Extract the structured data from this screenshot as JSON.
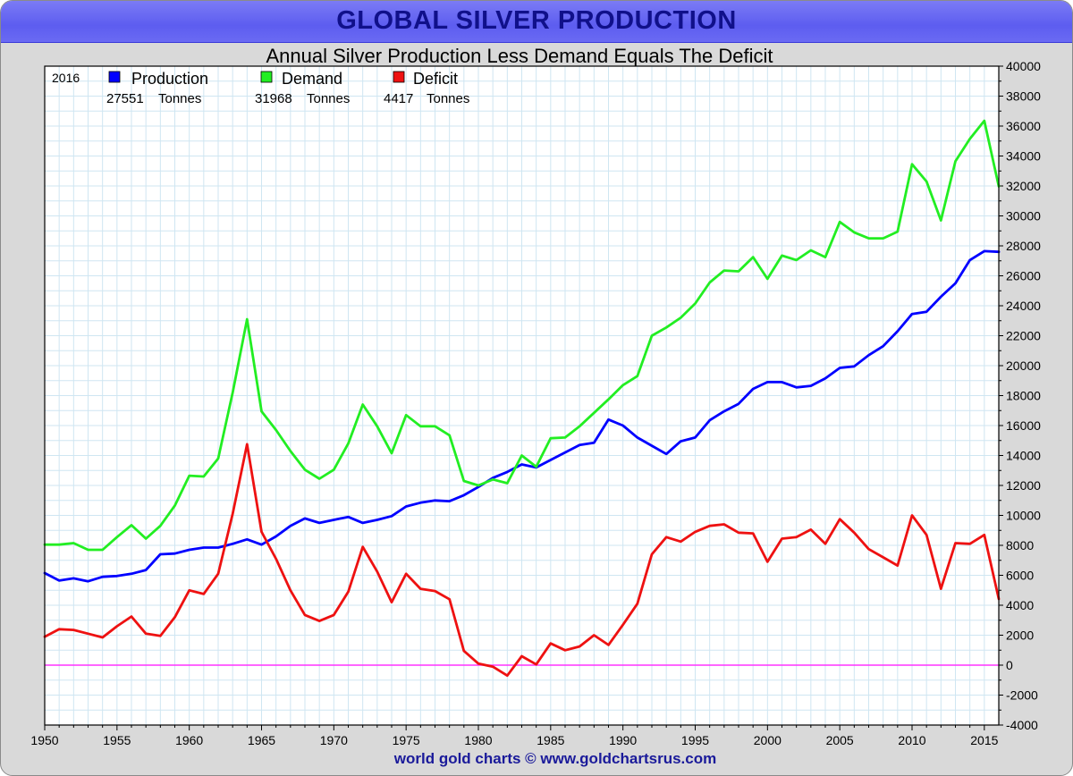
{
  "header": {
    "title": "GLOBAL SILVER PRODUCTION",
    "subtitle": "Annual Silver Production Less Demand Equals The Deficit"
  },
  "footer": {
    "credit": "world gold charts © www.goldchartsrus.com"
  },
  "legend": {
    "year": "2016",
    "items": [
      {
        "label": "Production",
        "value": "27551",
        "unit": "Tonnes",
        "color": "#0000ff"
      },
      {
        "label": "Demand",
        "value": "31968",
        "unit": "Tonnes",
        "color": "#22ee22"
      },
      {
        "label": "Deficit",
        "value": "4417",
        "unit": "Tonnes",
        "color": "#ee1111"
      }
    ]
  },
  "chart_data": {
    "type": "line",
    "title": "GLOBAL SILVER PRODUCTION",
    "subtitle": "Annual Silver Production Less Demand Equals The Deficit",
    "xlim": [
      1950,
      2016
    ],
    "ylim": [
      -4000,
      40000
    ],
    "x_ticks": [
      "1950",
      "1955",
      "1960",
      "1965",
      "1970",
      "1975",
      "1980",
      "1985",
      "1990",
      "1995",
      "2000",
      "2005",
      "2010",
      "2015"
    ],
    "y_ticks": [
      "40000",
      "38000",
      "36000",
      "34000",
      "32000",
      "30000",
      "28000",
      "26000",
      "24000",
      "22000",
      "20000",
      "18000",
      "16000",
      "14000",
      "12000",
      "10000",
      "8000",
      "6000",
      "4000",
      "2000",
      "0",
      "-2000",
      "-4000"
    ],
    "grid": true,
    "legend_position": "top-left",
    "x": [
      1950,
      1951,
      1952,
      1953,
      1954,
      1955,
      1956,
      1957,
      1958,
      1959,
      1960,
      1961,
      1962,
      1963,
      1964,
      1965,
      1966,
      1967,
      1968,
      1969,
      1970,
      1971,
      1972,
      1973,
      1974,
      1975,
      1976,
      1977,
      1978,
      1979,
      1980,
      1981,
      1982,
      1983,
      1984,
      1985,
      1986,
      1987,
      1988,
      1989,
      1990,
      1991,
      1992,
      1993,
      1994,
      1995,
      1996,
      1997,
      1998,
      1999,
      2000,
      2001,
      2002,
      2003,
      2004,
      2005,
      2006,
      2007,
      2008,
      2009,
      2010,
      2011,
      2012,
      2013,
      2014,
      2015,
      2016
    ],
    "series": [
      {
        "name": "Production",
        "color": "#0000ff",
        "values": [
          6150,
          5650,
          5800,
          5600,
          5900,
          5950,
          6100,
          6350,
          7400,
          7450,
          7700,
          7850,
          7850,
          8100,
          8400,
          8050,
          8600,
          9300,
          9800,
          9500,
          9700,
          9900,
          9500,
          9700,
          9950,
          10600,
          10850,
          11000,
          10950,
          11350,
          11900,
          12500,
          12900,
          13400,
          13200,
          13700,
          14200,
          14700,
          14850,
          16400,
          16000,
          15200,
          14650,
          14100,
          14950,
          15200,
          16350,
          16950,
          17450,
          18450,
          18900,
          18900,
          18550,
          18650,
          19150,
          19850,
          19950,
          20700,
          21300,
          22300,
          23450,
          23600,
          24600,
          25500,
          27050,
          27650,
          27600
        ]
      },
      {
        "name": "Demand",
        "color": "#22ee22",
        "values": [
          8050,
          8050,
          8150,
          7700,
          7700,
          8550,
          9350,
          8450,
          9300,
          10650,
          12650,
          12600,
          13800,
          18200,
          23100,
          16950,
          15700,
          14300,
          13050,
          12450,
          13050,
          14800,
          17400,
          15950,
          14150,
          16700,
          15950,
          15950,
          15350,
          12300,
          12000,
          12400,
          12150,
          14000,
          13250,
          15150,
          15200,
          15950,
          16850,
          17750,
          18700,
          19300,
          22000,
          22550,
          23200,
          24150,
          25550,
          26350,
          26300,
          27250,
          25800,
          27350,
          27050,
          27700,
          27250,
          29600,
          28900,
          28500,
          28500,
          28950,
          33450,
          32300,
          29700,
          33650,
          35150,
          36350,
          31968
        ]
      },
      {
        "name": "Deficit",
        "color": "#ee1111",
        "values": [
          1900,
          2400,
          2350,
          2100,
          1850,
          2600,
          3250,
          2100,
          1950,
          3200,
          5000,
          4750,
          6100,
          10100,
          14750,
          8900,
          7100,
          5000,
          3350,
          2950,
          3350,
          4900,
          7900,
          6250,
          4200,
          6100,
          5100,
          4950,
          4400,
          950,
          100,
          -100,
          -700,
          600,
          50,
          1450,
          1000,
          1250,
          2000,
          1350,
          2700,
          4100,
          7400,
          8550,
          8250,
          8900,
          9300,
          9400,
          8850,
          8800,
          6900,
          8450,
          8550,
          9050,
          8100,
          9750,
          8850,
          7750,
          7200,
          6650,
          10000,
          8700,
          5100,
          8150,
          8100,
          8700,
          4417
        ]
      }
    ],
    "reference_line": {
      "y": 0,
      "color": "#ff33ff"
    }
  }
}
